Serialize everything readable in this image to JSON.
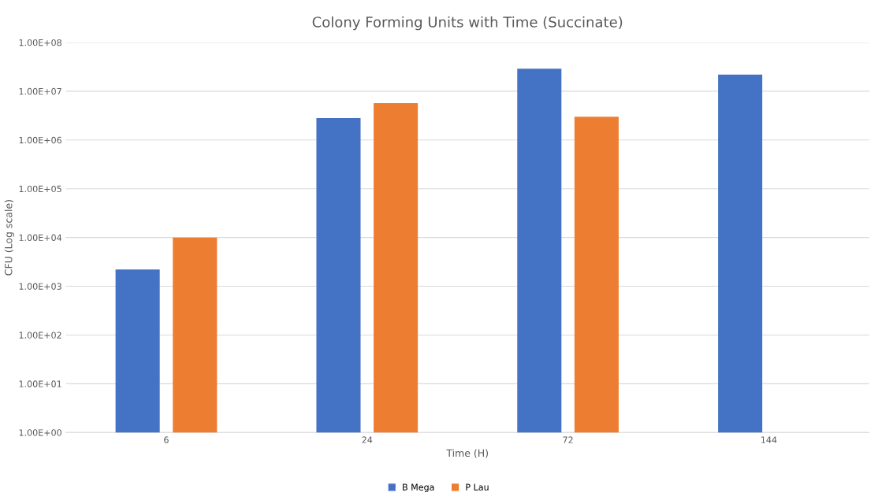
{
  "chart_data": {
    "type": "bar",
    "title": "Colony Forming Units with Time (Succinate)",
    "xlabel": "Time (H)",
    "ylabel": "CFU (Log scale)",
    "categories": [
      "6",
      "24",
      "72",
      "144"
    ],
    "series": [
      {
        "name": "B Mega",
        "color": "#4472c4",
        "values": [
          2200,
          2800000,
          29000000,
          22000000
        ]
      },
      {
        "name": "P Lau",
        "color": "#ed7d31",
        "values": [
          10000,
          5700000,
          3000000,
          null
        ]
      }
    ],
    "log": true,
    "ylim": [
      1,
      100000000
    ],
    "yticks": [
      {
        "value": 1,
        "label": "1.00E+00"
      },
      {
        "value": 10,
        "label": "1.00E+01"
      },
      {
        "value": 100,
        "label": "1.00E+02"
      },
      {
        "value": 1000,
        "label": "1.00E+03"
      },
      {
        "value": 10000,
        "label": "1.00E+04"
      },
      {
        "value": 100000,
        "label": "1.00E+05"
      },
      {
        "value": 1000000,
        "label": "1.00E+06"
      },
      {
        "value": 10000000,
        "label": "1.00E+07"
      },
      {
        "value": 100000000,
        "label": "1.00E+08"
      }
    ],
    "grid": "y",
    "legend": "bottom"
  }
}
